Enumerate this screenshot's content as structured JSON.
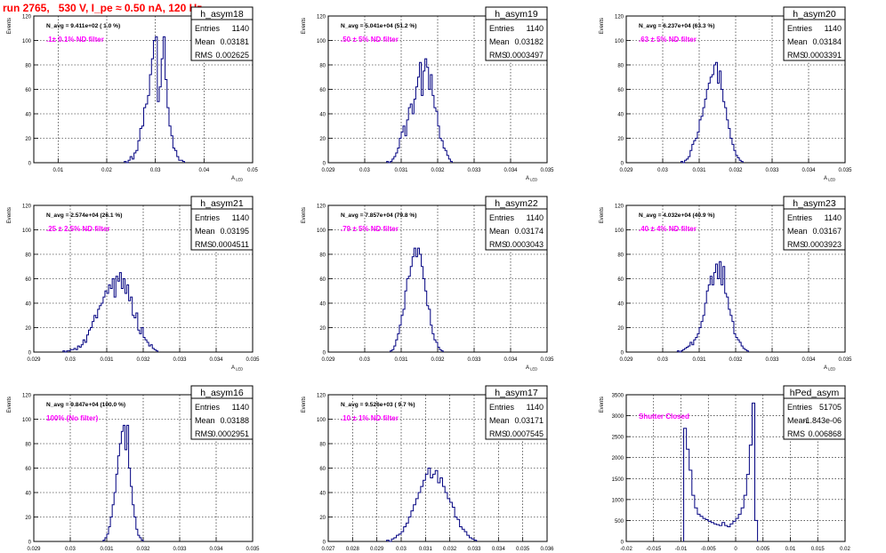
{
  "page_title": "run 2765,   530 V, I_pe ≈ 0.50 nA, 120 Hz",
  "colors": {
    "histogram": "#000080",
    "annotation": "#ff00ff",
    "title": "#ff0000",
    "grid": "#000000"
  },
  "chart_data": [
    {
      "type": "bar",
      "name": "h_asym18",
      "navg": "N_avg = 9.411e+02 ( 1.0 %)",
      "note": ".1± 0.1% ND filter",
      "stats": [
        [
          "Entries",
          "1140"
        ],
        [
          "Mean",
          "0.03181"
        ],
        [
          "RMS",
          "0.002625"
        ]
      ],
      "ylabel": "Events",
      "xlabel": "A_LED",
      "xlim": [
        0.005,
        0.05
      ],
      "ylim": [
        0,
        120
      ],
      "xticks": [
        "0.01",
        "0.02",
        "0.03",
        "0.04",
        "0.05"
      ],
      "xtick_values": [
        0.01,
        0.02,
        0.03,
        0.04,
        0.05
      ],
      "yticks": [
        "0",
        "20",
        "40",
        "60",
        "80",
        "100",
        "120"
      ],
      "ytick_values": [
        0,
        20,
        40,
        60,
        80,
        100,
        120
      ],
      "x_start": 0.0236,
      "bin_width": 0.0004,
      "values": [
        1,
        0,
        2,
        5,
        3,
        8,
        10,
        18,
        28,
        30,
        45,
        48,
        55,
        72,
        85,
        100,
        103,
        50,
        62,
        85,
        103,
        68,
        45,
        30,
        22,
        12,
        10,
        5,
        2,
        2,
        1
      ]
    },
    {
      "type": "bar",
      "name": "h_asym19",
      "navg": "N_avg = 5.041e+04 (51.2 %)",
      "note": ".50 ± 5% ND filter",
      "stats": [
        [
          "Entries",
          "1140"
        ],
        [
          "Mean",
          "0.03182"
        ],
        [
          "RMS",
          "0.0003497"
        ]
      ],
      "ylabel": "Events",
      "xlabel": "A_LED",
      "xlim": [
        0.029,
        0.035
      ],
      "ylim": [
        0,
        120
      ],
      "xticks": [
        "0.029",
        "0.03",
        "0.031",
        "0.032",
        "0.033",
        "0.034",
        "0.035"
      ],
      "xtick_values": [
        0.029,
        0.03,
        0.031,
        0.032,
        0.033,
        0.034,
        0.035
      ],
      "yticks": [
        "0",
        "20",
        "40",
        "60",
        "80",
        "100",
        "120"
      ],
      "ytick_values": [
        0,
        20,
        40,
        60,
        80,
        100,
        120
      ],
      "x_start": 0.0306,
      "bin_width": 5e-05,
      "values": [
        1,
        0,
        1,
        3,
        5,
        8,
        12,
        20,
        25,
        30,
        22,
        35,
        45,
        48,
        40,
        52,
        62,
        70,
        82,
        55,
        75,
        85,
        78,
        60,
        72,
        55,
        45,
        42,
        30,
        20,
        18,
        12,
        10,
        6,
        3,
        1
      ]
    },
    {
      "type": "bar",
      "name": "h_asym20",
      "navg": "N_avg = 6.237e+04 (63.3 %)",
      "note": ".63 ± 5% ND filter",
      "stats": [
        [
          "Entries",
          "1140"
        ],
        [
          "Mean",
          "0.03184"
        ],
        [
          "RMS",
          "0.0003391"
        ]
      ],
      "ylabel": "Events",
      "xlabel": "A_LED",
      "xlim": [
        0.029,
        0.035
      ],
      "ylim": [
        0,
        120
      ],
      "xticks": [
        "0.029",
        "0.03",
        "0.031",
        "0.032",
        "0.033",
        "0.034",
        "0.035"
      ],
      "xtick_values": [
        0.029,
        0.03,
        0.031,
        0.032,
        0.033,
        0.034,
        0.035
      ],
      "yticks": [
        "0",
        "20",
        "40",
        "60",
        "80",
        "100",
        "120"
      ],
      "ytick_values": [
        0,
        20,
        40,
        60,
        80,
        100,
        120
      ],
      "x_start": 0.0305,
      "bin_width": 5e-05,
      "values": [
        1,
        0,
        2,
        3,
        5,
        10,
        15,
        18,
        20,
        25,
        35,
        38,
        45,
        52,
        60,
        65,
        70,
        72,
        80,
        82,
        65,
        75,
        60,
        50,
        45,
        35,
        28,
        20,
        15,
        10,
        6,
        4,
        2,
        1
      ]
    },
    {
      "type": "bar",
      "name": "h_asym21",
      "navg": "N_avg = 2.574e+04 (26.1 %)",
      "note": ".25 ± 2.5% ND filter",
      "stats": [
        [
          "Entries",
          "1140"
        ],
        [
          "Mean",
          "0.03195"
        ],
        [
          "RMS",
          "0.0004511"
        ]
      ],
      "ylabel": "Events",
      "xlabel": "A_LED",
      "xlim": [
        0.029,
        0.035
      ],
      "ylim": [
        0,
        120
      ],
      "xticks": [
        "0.029",
        "0.03",
        "0.031",
        "0.032",
        "0.033",
        "0.034",
        "0.035"
      ],
      "xtick_values": [
        0.029,
        0.03,
        0.031,
        0.032,
        0.033,
        0.034,
        0.035
      ],
      "yticks": [
        "0",
        "20",
        "40",
        "60",
        "80",
        "100",
        "120"
      ],
      "ytick_values": [
        0,
        20,
        40,
        60,
        80,
        100,
        120
      ],
      "x_start": 0.0298,
      "bin_width": 5e-05,
      "values": [
        1,
        0,
        1,
        1,
        2,
        2,
        3,
        2,
        5,
        4,
        6,
        10,
        8,
        14,
        18,
        20,
        25,
        30,
        28,
        35,
        38,
        40,
        45,
        50,
        48,
        55,
        52,
        60,
        45,
        62,
        58,
        65,
        52,
        60,
        48,
        55,
        42,
        45,
        30,
        28,
        32,
        18,
        15,
        20,
        12,
        10,
        8,
        5,
        6,
        3,
        2,
        1
      ]
    },
    {
      "type": "bar",
      "name": "h_asym22",
      "navg": "N_avg = 7.857e+04 (79.8 %)",
      "note": ".79 ± 5% ND filter",
      "stats": [
        [
          "Entries",
          "1140"
        ],
        [
          "Mean",
          "0.03174"
        ],
        [
          "RMS",
          "0.0003043"
        ]
      ],
      "ylabel": "Events",
      "xlabel": "A_LED",
      "xlim": [
        0.029,
        0.035
      ],
      "ylim": [
        0,
        120
      ],
      "xticks": [
        "0.029",
        "0.03",
        "0.031",
        "0.032",
        "0.033",
        "0.034",
        "0.035"
      ],
      "xtick_values": [
        0.029,
        0.03,
        0.031,
        0.032,
        0.033,
        0.034,
        0.035
      ],
      "yticks": [
        "0",
        "20",
        "40",
        "60",
        "80",
        "100",
        "120"
      ],
      "ytick_values": [
        0,
        20,
        40,
        60,
        80,
        100,
        120
      ],
      "x_start": 0.0307,
      "bin_width": 5e-05,
      "values": [
        1,
        2,
        5,
        10,
        15,
        22,
        30,
        35,
        50,
        60,
        62,
        70,
        78,
        85,
        78,
        85,
        80,
        70,
        60,
        50,
        38,
        35,
        22,
        15,
        10,
        8,
        4,
        2,
        1
      ]
    },
    {
      "type": "bar",
      "name": "h_asym23",
      "navg": "N_avg = 4.032e+04 (40.9 %)",
      "note": ".40 ± 4% ND filter",
      "stats": [
        [
          "Entries",
          "1140"
        ],
        [
          "Mean",
          "0.03167"
        ],
        [
          "RMS",
          "0.0003923"
        ]
      ],
      "ylabel": "Events",
      "xlabel": "A_LED",
      "xlim": [
        0.029,
        0.035
      ],
      "ylim": [
        0,
        120
      ],
      "xticks": [
        "0.029",
        "0.03",
        "0.031",
        "0.032",
        "0.033",
        "0.034",
        "0.035"
      ],
      "xtick_values": [
        0.029,
        0.03,
        0.031,
        0.032,
        0.033,
        0.034,
        0.035
      ],
      "yticks": [
        "0",
        "20",
        "40",
        "60",
        "80",
        "100",
        "120"
      ],
      "ytick_values": [
        0,
        20,
        40,
        60,
        80,
        100,
        120
      ],
      "x_start": 0.0304,
      "bin_width": 5e-05,
      "values": [
        1,
        0,
        1,
        2,
        3,
        4,
        5,
        8,
        6,
        10,
        12,
        15,
        20,
        25,
        30,
        40,
        50,
        55,
        62,
        55,
        65,
        72,
        60,
        74,
        55,
        70,
        48,
        45,
        35,
        30,
        25,
        15,
        12,
        10,
        8,
        5,
        3,
        2,
        1
      ]
    },
    {
      "type": "bar",
      "name": "h_asym16",
      "navg": "N_avg = 9.847e+04 (100.0 %)",
      "note": "100% (No filter)",
      "stats": [
        [
          "Entries",
          "1140"
        ],
        [
          "Mean",
          "0.03188"
        ],
        [
          "RMS",
          "0.0002951"
        ]
      ],
      "ylabel": "Events",
      "xlabel": "A_LED",
      "xlim": [
        0.029,
        0.035
      ],
      "ylim": [
        0,
        120
      ],
      "xticks": [
        "0.029",
        "0.03",
        "0.031",
        "0.032",
        "0.033",
        "0.034",
        "0.035"
      ],
      "xtick_values": [
        0.029,
        0.03,
        0.031,
        0.032,
        0.033,
        0.034,
        0.035
      ],
      "yticks": [
        "0",
        "20",
        "40",
        "60",
        "80",
        "100",
        "120"
      ],
      "ytick_values": [
        0,
        20,
        40,
        60,
        80,
        100,
        120
      ],
      "x_start": 0.0309,
      "bin_width": 5e-05,
      "values": [
        1,
        3,
        6,
        12,
        20,
        30,
        40,
        55,
        70,
        80,
        90,
        95,
        75,
        95,
        60,
        45,
        30,
        20,
        10,
        5,
        3,
        1
      ]
    },
    {
      "type": "bar",
      "name": "h_asym17",
      "navg": "N_avg = 9.526e+03 ( 9.7 %)",
      "note": ".10 ± 1% ND filter",
      "stats": [
        [
          "Entries",
          "1140"
        ],
        [
          "Mean",
          "0.03171"
        ],
        [
          "RMS",
          "0.0007545"
        ]
      ],
      "ylabel": "Events",
      "xlabel": "A_LED",
      "xlim": [
        0.027,
        0.036
      ],
      "ylim": [
        0,
        120
      ],
      "xticks": [
        "0.027",
        "0.028",
        "0.029",
        "0.03",
        "0.031",
        "0.032",
        "0.033",
        "0.034",
        "0.035",
        "0.036"
      ],
      "xtick_values": [
        0.027,
        0.028,
        0.029,
        0.03,
        0.031,
        0.032,
        0.033,
        0.034,
        0.035,
        0.036
      ],
      "yticks": [
        "0",
        "20",
        "40",
        "60",
        "80",
        "100",
        "120"
      ],
      "ytick_values": [
        0,
        20,
        40,
        60,
        80,
        100,
        120
      ],
      "x_start": 0.0294,
      "bin_width": 0.0001,
      "values": [
        1,
        0,
        2,
        3,
        5,
        6,
        8,
        12,
        15,
        20,
        25,
        30,
        35,
        40,
        45,
        50,
        55,
        60,
        52,
        55,
        58,
        48,
        52,
        45,
        40,
        35,
        32,
        28,
        20,
        18,
        12,
        10,
        8,
        5,
        3,
        2,
        1
      ]
    },
    {
      "type": "bar",
      "name": "hPed_asym",
      "navg": "",
      "note": "Shutter Closed",
      "stats": [
        [
          "Entries",
          "51705"
        ],
        [
          "Mean",
          "-1.843e-06"
        ],
        [
          "RMS",
          "0.006868"
        ]
      ],
      "ylabel": "Events",
      "xlabel": "",
      "xlim": [
        -0.02,
        0.02
      ],
      "ylim": [
        0,
        3500
      ],
      "xticks": [
        "-0.02",
        "-0.015",
        "-0.01",
        "-0.005",
        "0",
        "0.005",
        "0.01",
        "0.015",
        "0.02"
      ],
      "xtick_values": [
        -0.02,
        -0.015,
        -0.01,
        -0.005,
        0,
        0.005,
        0.01,
        0.015,
        0.02
      ],
      "yticks": [
        "0",
        "500",
        "1000",
        "1500",
        "2000",
        "2500",
        "3000",
        "3500"
      ],
      "ytick_values": [
        0,
        500,
        1000,
        1500,
        2000,
        2500,
        3000,
        3500
      ],
      "x_start": -0.0095,
      "bin_width": 0.0005,
      "values": [
        2700,
        2200,
        1700,
        1100,
        800,
        650,
        600,
        550,
        520,
        480,
        450,
        420,
        400,
        380,
        450,
        380,
        350,
        420,
        480,
        550,
        650,
        800,
        1100,
        1600,
        2300,
        3300,
        500
      ]
    }
  ]
}
